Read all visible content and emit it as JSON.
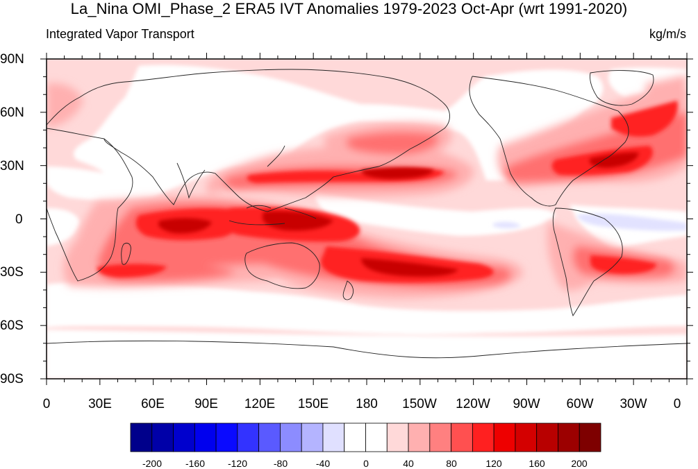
{
  "title": "La_Nina OMI_Phase_2 ERA5 IVT Anomalies 1979-2023 Oct-Apr (wrt 1991-2020)",
  "subtitle_left": "Integrated Vapor Transport",
  "subtitle_right": "kg/m/s",
  "lat_ticks": [
    "90N",
    "60N",
    "30N",
    "0",
    "30S",
    "60S",
    "90S"
  ],
  "lon_ticks": [
    "0",
    "30E",
    "60E",
    "90E",
    "120E",
    "150E",
    "180",
    "150W",
    "120W",
    "90W",
    "60W",
    "30W",
    "0"
  ],
  "colorbar": {
    "labels": [
      "-200",
      "-160",
      "-120",
      "-80",
      "-40",
      "0",
      "40",
      "80",
      "120",
      "160",
      "200"
    ],
    "colors": [
      "#00008b",
      "#0000a8",
      "#0000cd",
      "#0000ee",
      "#0a0aff",
      "#3333ff",
      "#5a5aff",
      "#8c8cff",
      "#b4b4ff",
      "#e0e0ff",
      "#ffffff",
      "#ffffff",
      "#ffd9d9",
      "#ffb0b0",
      "#ff8080",
      "#ff5050",
      "#ff2020",
      "#ee0000",
      "#d40000",
      "#b80000",
      "#9c0000",
      "#7e0000"
    ]
  }
}
